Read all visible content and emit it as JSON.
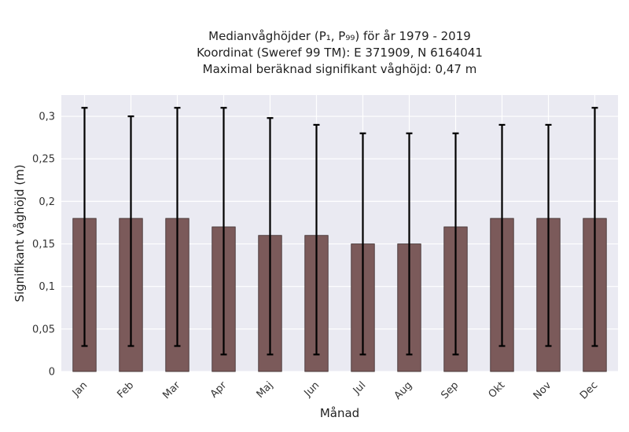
{
  "chart_data": {
    "type": "bar",
    "title_lines": [
      "Medianvåghöjder (P₁, P₉₉) för år 1979 - 2019",
      "Koordinat (Sweref 99 TM): E 371909, N 6164041",
      "Maximal beräknad signifikant våghöjd: 0,47 m"
    ],
    "xlabel": "Månad",
    "ylabel": "Signifikant våghöjd (m)",
    "categories": [
      "Jan",
      "Feb",
      "Mar",
      "Apr",
      "Maj",
      "Jun",
      "Jul",
      "Aug",
      "Sep",
      "Okt",
      "Nov",
      "Dec"
    ],
    "values": [
      0.18,
      0.18,
      0.18,
      0.17,
      0.16,
      0.16,
      0.15,
      0.15,
      0.17,
      0.18,
      0.18,
      0.18
    ],
    "error_low": [
      0.03,
      0.03,
      0.03,
      0.02,
      0.02,
      0.02,
      0.02,
      0.02,
      0.02,
      0.03,
      0.03,
      0.03
    ],
    "error_high": [
      0.31,
      0.3,
      0.31,
      0.31,
      0.298,
      0.29,
      0.28,
      0.28,
      0.28,
      0.29,
      0.29,
      0.31
    ],
    "ylim": [
      0,
      0.325
    ],
    "yticks": [
      0,
      0.05,
      0.1,
      0.15,
      0.2,
      0.25,
      0.3
    ],
    "ytick_labels": [
      "0",
      "0,05",
      "0,1",
      "0,15",
      "0,2",
      "0,25",
      "0,3"
    ],
    "grid": true,
    "colors": {
      "bar": "#7b5a5a",
      "bar_edge": "#3a2a2a",
      "plot_bg": "#eaeaf2",
      "grid": "#ffffff",
      "error": "#000000"
    }
  }
}
